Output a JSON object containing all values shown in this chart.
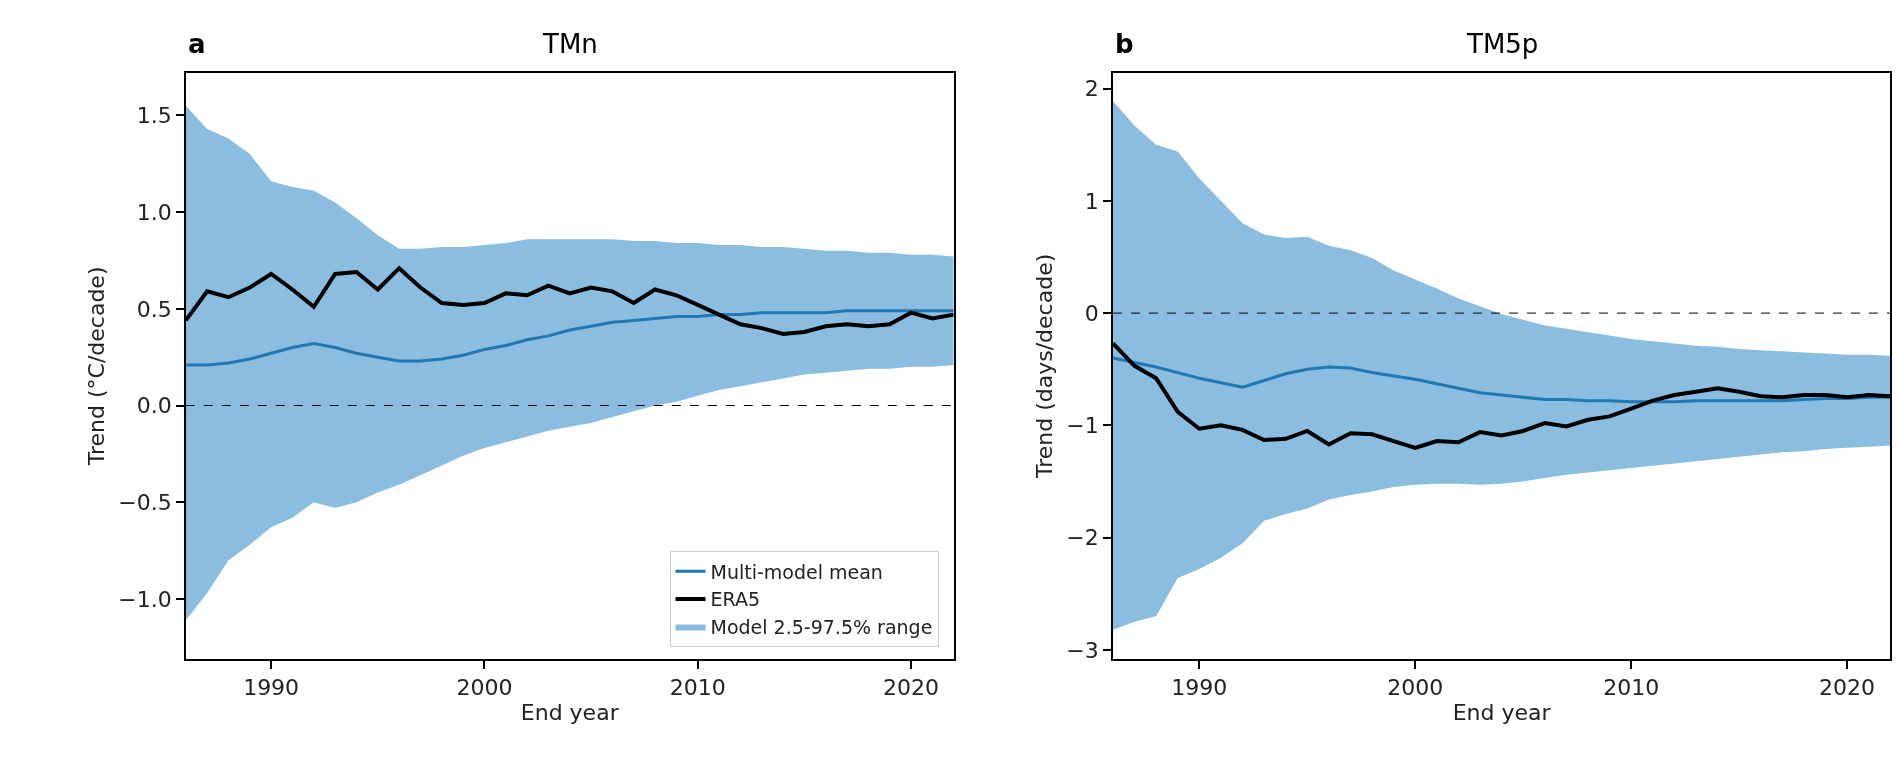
{
  "chart_data": [
    {
      "type": "line",
      "title": "TMn",
      "annotations": [
        "a"
      ],
      "xlabel": "End year",
      "ylabel": "Trend (°C/decade)",
      "x": [
        1986,
        1987,
        1988,
        1989,
        1990,
        1991,
        1992,
        1993,
        1994,
        1995,
        1996,
        1997,
        1998,
        1999,
        2000,
        2001,
        2002,
        2003,
        2004,
        2005,
        2006,
        2007,
        2008,
        2009,
        2010,
        2011,
        2012,
        2013,
        2014,
        2015,
        2016,
        2017,
        2018,
        2019,
        2020,
        2021,
        2022
      ],
      "xlim": [
        1986,
        2022
      ],
      "xticks": [
        1990,
        2000,
        2010,
        2020
      ],
      "ylim": [
        -1.31,
        1.72
      ],
      "yticks": [
        {
          "value": -1.0,
          "label": "−1.0"
        },
        {
          "value": -0.5,
          "label": "−0.5"
        },
        {
          "value": 0.0,
          "label": "0.0"
        },
        {
          "value": 0.5,
          "label": "0.5"
        },
        {
          "value": 1.0,
          "label": "1.0"
        },
        {
          "value": 1.5,
          "label": "1.5"
        }
      ],
      "legend": "bottom right",
      "ref_lines": [
        {
          "axis": "y",
          "value": 0,
          "color": "#000000",
          "line_style": "dashed"
        }
      ],
      "series": [
        {
          "name": "Multi-model mean",
          "color": "#1f77b4",
          "values": [
            0.21,
            0.21,
            0.22,
            0.24,
            0.27,
            0.3,
            0.32,
            0.3,
            0.27,
            0.25,
            0.23,
            0.23,
            0.24,
            0.26,
            0.29,
            0.31,
            0.34,
            0.36,
            0.39,
            0.41,
            0.43,
            0.44,
            0.45,
            0.46,
            0.46,
            0.47,
            0.47,
            0.48,
            0.48,
            0.48,
            0.48,
            0.49,
            0.49,
            0.49,
            0.49,
            0.49,
            0.49
          ]
        },
        {
          "name": "ERA5",
          "color": "#000000",
          "values": [
            0.44,
            0.59,
            0.56,
            0.61,
            0.68,
            0.6,
            0.51,
            0.68,
            0.69,
            0.6,
            0.71,
            0.61,
            0.53,
            0.52,
            0.53,
            0.58,
            0.57,
            0.62,
            0.58,
            0.61,
            0.59,
            0.53,
            0.6,
            0.57,
            0.52,
            0.47,
            0.42,
            0.4,
            0.37,
            0.38,
            0.41,
            0.42,
            0.41,
            0.42,
            0.48,
            0.45,
            0.47
          ]
        },
        {
          "name": "Model 2.5-97.5% range",
          "color": "#8bbde0",
          "values": [
            null,
            null,
            null,
            null,
            null,
            null,
            null,
            null,
            null,
            null,
            null,
            null,
            null,
            null,
            null,
            null,
            null,
            null,
            null,
            null,
            null,
            null,
            null,
            null,
            null,
            null,
            null,
            null,
            null,
            null,
            null,
            null,
            null,
            null,
            null,
            null,
            null
          ],
          "lower": [
            -1.11,
            -0.97,
            -0.8,
            -0.72,
            -0.63,
            -0.58,
            -0.5,
            -0.53,
            -0.5,
            -0.45,
            -0.41,
            -0.36,
            -0.31,
            -0.26,
            -0.22,
            -0.19,
            -0.16,
            -0.13,
            -0.11,
            -0.09,
            -0.06,
            -0.03,
            0.0,
            0.02,
            0.05,
            0.08,
            0.1,
            0.12,
            0.14,
            0.16,
            0.17,
            0.18,
            0.19,
            0.19,
            0.2,
            0.2,
            0.21
          ],
          "upper": [
            1.55,
            1.43,
            1.38,
            1.3,
            1.16,
            1.13,
            1.11,
            1.05,
            0.97,
            0.88,
            0.81,
            0.81,
            0.82,
            0.82,
            0.83,
            0.84,
            0.86,
            0.86,
            0.86,
            0.86,
            0.86,
            0.85,
            0.85,
            0.84,
            0.84,
            0.83,
            0.83,
            0.82,
            0.82,
            0.81,
            0.8,
            0.8,
            0.79,
            0.79,
            0.78,
            0.78,
            0.77
          ]
        }
      ]
    },
    {
      "type": "line",
      "title": "TM5p",
      "annotations": [
        "b"
      ],
      "xlabel": "End year",
      "ylabel": "Trend (days/decade)",
      "x": [
        1986,
        1987,
        1988,
        1989,
        1990,
        1991,
        1992,
        1993,
        1994,
        1995,
        1996,
        1997,
        1998,
        1999,
        2000,
        2001,
        2002,
        2003,
        2004,
        2005,
        2006,
        2007,
        2008,
        2009,
        2010,
        2011,
        2012,
        2013,
        2014,
        2015,
        2016,
        2017,
        2018,
        2019,
        2020,
        2021,
        2022
      ],
      "xlim": [
        1986,
        2022
      ],
      "xticks": [
        1990,
        2000,
        2010,
        2020
      ],
      "ylim": [
        -3.08,
        2.14
      ],
      "yticks": [
        -3,
        -2,
        -1,
        0,
        1,
        2
      ],
      "ref_lines": [
        {
          "axis": "y",
          "value": 0,
          "color": "#000000",
          "line_style": "dashed"
        }
      ],
      "series": [
        {
          "color": "#1f77b4",
          "values": [
            -0.4,
            -0.44,
            -0.48,
            -0.53,
            -0.58,
            -0.62,
            -0.66,
            -0.6,
            -0.54,
            -0.5,
            -0.48,
            -0.49,
            -0.53,
            -0.56,
            -0.59,
            -0.63,
            -0.67,
            -0.71,
            -0.73,
            -0.75,
            -0.77,
            -0.77,
            -0.78,
            -0.78,
            -0.79,
            -0.79,
            -0.79,
            -0.78,
            -0.78,
            -0.78,
            -0.78,
            -0.78,
            -0.77,
            -0.76,
            -0.76,
            -0.75,
            -0.75
          ]
        },
        {
          "color": "#000000",
          "values": [
            -0.27,
            -0.47,
            -0.58,
            -0.88,
            -1.03,
            -1.0,
            -1.04,
            -1.13,
            -1.12,
            -1.05,
            -1.17,
            -1.07,
            -1.08,
            -1.14,
            -1.2,
            -1.14,
            -1.15,
            -1.06,
            -1.09,
            -1.05,
            -0.98,
            -1.01,
            -0.95,
            -0.92,
            -0.85,
            -0.78,
            -0.73,
            -0.7,
            -0.67,
            -0.7,
            -0.74,
            -0.75,
            -0.73,
            -0.73,
            -0.75,
            -0.73,
            -0.74
          ]
        },
        {
          "color": "#8bbde0",
          "values": [
            null,
            null,
            null,
            null,
            null,
            null,
            null,
            null,
            null,
            null,
            null,
            null,
            null,
            null,
            null,
            null,
            null,
            null,
            null,
            null,
            null,
            null,
            null,
            null,
            null,
            null,
            null,
            null,
            null,
            null,
            null,
            null,
            null,
            null,
            null,
            null,
            null
          ],
          "lower": [
            -2.82,
            -2.75,
            -2.7,
            -2.36,
            -2.28,
            -2.18,
            -2.05,
            -1.85,
            -1.79,
            -1.74,
            -1.66,
            -1.62,
            -1.59,
            -1.55,
            -1.53,
            -1.52,
            -1.52,
            -1.53,
            -1.52,
            -1.5,
            -1.47,
            -1.44,
            -1.42,
            -1.4,
            -1.38,
            -1.36,
            -1.34,
            -1.32,
            -1.3,
            -1.28,
            -1.26,
            -1.24,
            -1.23,
            -1.21,
            -1.2,
            -1.19,
            -1.18
          ],
          "upper": [
            1.89,
            1.67,
            1.5,
            1.44,
            1.2,
            1.0,
            0.8,
            0.7,
            0.67,
            0.68,
            0.6,
            0.56,
            0.49,
            0.38,
            0.3,
            0.22,
            0.13,
            0.06,
            -0.01,
            -0.06,
            -0.11,
            -0.14,
            -0.17,
            -0.2,
            -0.23,
            -0.25,
            -0.27,
            -0.29,
            -0.3,
            -0.32,
            -0.33,
            -0.34,
            -0.35,
            -0.36,
            -0.37,
            -0.37,
            -0.38
          ]
        }
      ]
    }
  ]
}
